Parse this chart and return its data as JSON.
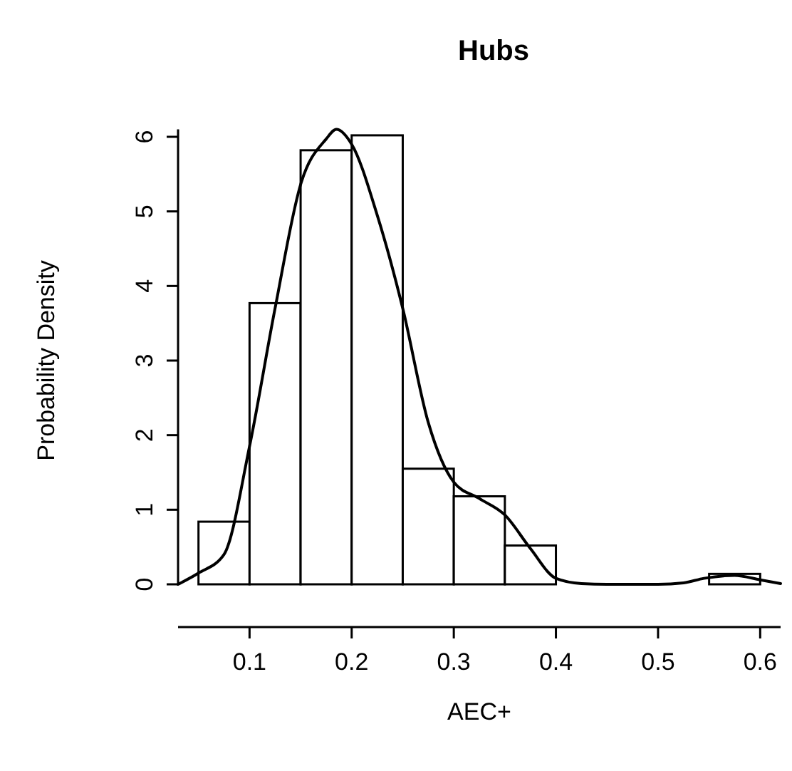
{
  "chart_data": {
    "type": "histogram",
    "title": "Hubs",
    "xlabel": "AEC+",
    "ylabel": "Probability Density",
    "bins": [
      0.05,
      0.1,
      0.15,
      0.2,
      0.25,
      0.3,
      0.35,
      0.4,
      0.45,
      0.5,
      0.55,
      0.6
    ],
    "values": [
      0.84,
      3.77,
      5.82,
      6.02,
      1.55,
      1.18,
      0.52,
      0,
      0,
      0,
      0.14
    ],
    "color": "#ffffff",
    "series": [
      {
        "type": "line",
        "color": "#000000",
        "x": [
          0.03,
          0.05,
          0.075,
          0.1,
          0.125,
          0.15,
          0.175,
          0.185,
          0.2,
          0.225,
          0.25,
          0.275,
          0.3,
          0.325,
          0.35,
          0.375,
          0.4,
          0.425,
          0.45,
          0.5,
          0.525,
          0.545,
          0.575,
          0.6,
          0.62
        ],
        "values": [
          0,
          0.15,
          0.4,
          1.85,
          3.7,
          5.36,
          5.97,
          6.1,
          5.9,
          4.95,
          3.7,
          2.17,
          1.37,
          1.15,
          0.93,
          0.48,
          0.08,
          0.01,
          0,
          0,
          0.02,
          0.08,
          0.12,
          0.06,
          0.01
        ]
      }
    ],
    "xlim": [
      0.03,
      0.62
    ],
    "xticks": [
      0.1,
      0.2,
      0.3,
      0.4,
      0.5,
      0.6
    ],
    "ylim": [
      0,
      6.1
    ],
    "yticks": [
      0,
      1,
      2,
      3,
      4,
      5,
      6
    ],
    "grid": false
  }
}
